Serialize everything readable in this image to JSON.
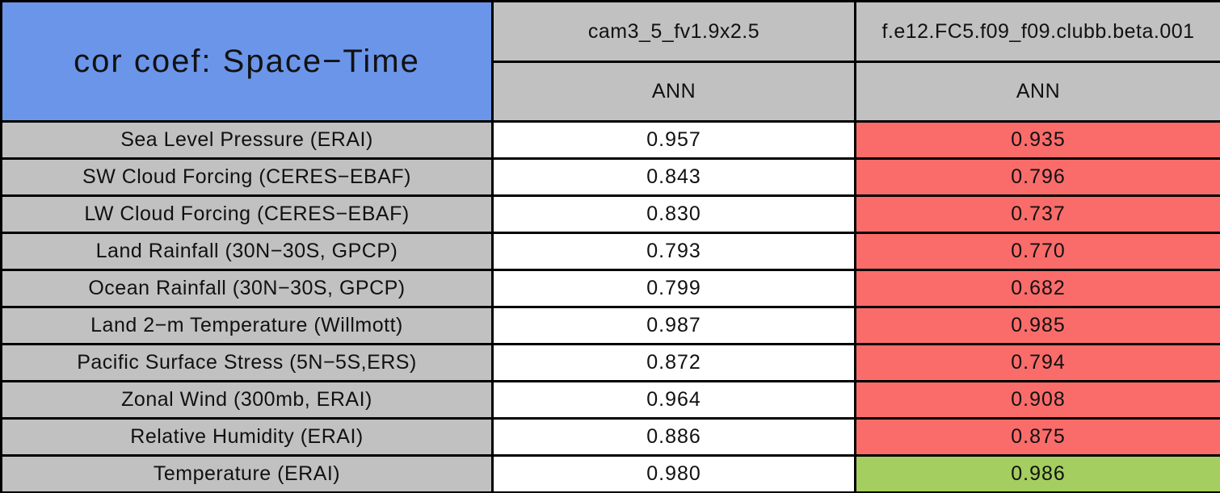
{
  "chart_data": {
    "type": "table",
    "title": "cor coef: Space−Time",
    "categories": [
      "Sea Level Pressure (ERAI)",
      "SW Cloud Forcing (CERES−EBAF)",
      "LW Cloud Forcing (CERES−EBAF)",
      "Land Rainfall (30N−30S, GPCP)",
      "Ocean Rainfall (30N−30S, GPCP)",
      "Land 2−m Temperature (Willmott)",
      "Pacific Surface Stress (5N−5S,ERS)",
      "Zonal Wind (300mb, ERAI)",
      "Relative Humidity (ERAI)",
      "Temperature (ERAI)"
    ],
    "series": [
      {
        "name": "cam3_5_fv1.9x2.5",
        "season": "ANN",
        "values": [
          0.957,
          0.843,
          0.83,
          0.793,
          0.799,
          0.987,
          0.872,
          0.964,
          0.886,
          0.98
        ],
        "values_display": [
          "0.957",
          "0.843",
          "0.830",
          "0.793",
          "0.799",
          "0.987",
          "0.872",
          "0.964",
          "0.886",
          "0.980"
        ],
        "cell_colors": [
          "white",
          "white",
          "white",
          "white",
          "white",
          "white",
          "white",
          "white",
          "white",
          "white"
        ]
      },
      {
        "name": "f.e12.FC5.f09_f09.clubb.beta.001",
        "season": "ANN",
        "values": [
          0.935,
          0.796,
          0.737,
          0.77,
          0.682,
          0.985,
          0.794,
          0.908,
          0.875,
          0.986
        ],
        "values_display": [
          "0.935",
          "0.796",
          "0.737",
          "0.770",
          "0.682",
          "0.985",
          "0.794",
          "0.908",
          "0.875",
          "0.986"
        ],
        "cell_colors": [
          "red",
          "red",
          "red",
          "red",
          "red",
          "red",
          "red",
          "red",
          "red",
          "green"
        ]
      }
    ],
    "layout_hints": {
      "grid": "black cell borders, collapsed",
      "title_cell_spans_two_header_rows": true
    }
  },
  "colors": {
    "header_blue": "#6B95E9",
    "cell_gray": "#C1C1C1",
    "worse_red": "#F96C6A",
    "better_green": "#A4CE5F",
    "value_white": "#FFFFFF",
    "border_black": "#000000"
  }
}
